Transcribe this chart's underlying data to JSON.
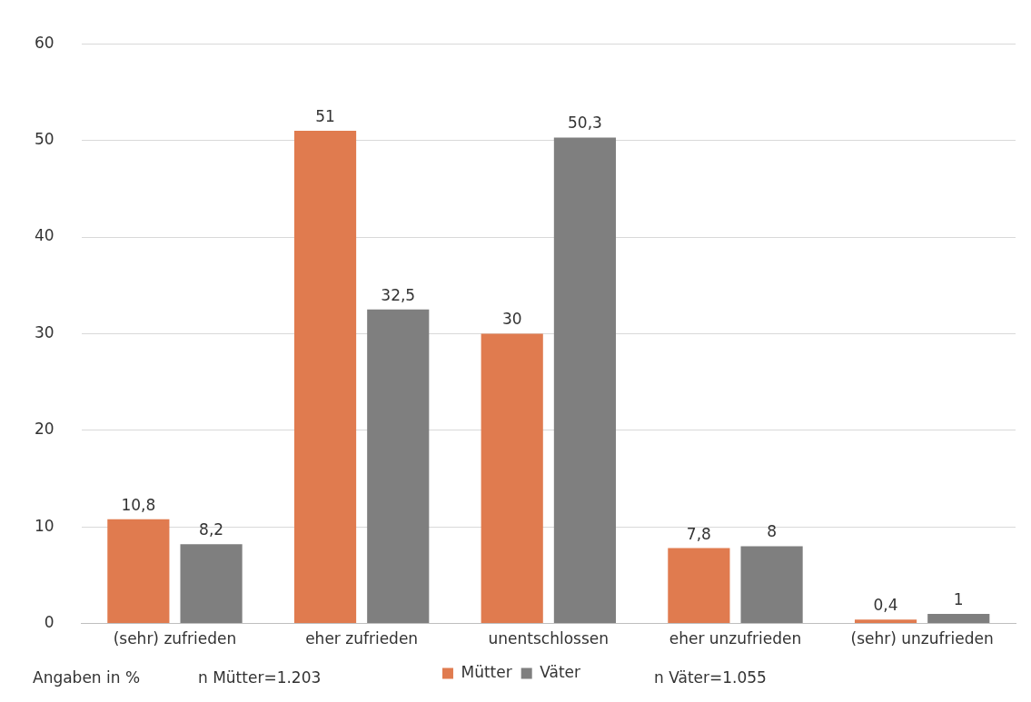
{
  "chart_data": {
    "type": "bar",
    "categories": [
      "(sehr) zufrieden",
      "eher zufrieden",
      "unentschlossen",
      "eher unzufrieden",
      "(sehr) unzufrieden"
    ],
    "series": [
      {
        "name": "Mütter",
        "color": "#e07b4f",
        "values": [
          10.8,
          51,
          30,
          7.8,
          0.4
        ],
        "value_labels": [
          "10,8",
          "51",
          "30",
          "7,8",
          "0,4"
        ]
      },
      {
        "name": "Väter",
        "color": "#7f7f7f",
        "values": [
          8.2,
          32.5,
          50.3,
          8,
          1
        ],
        "value_labels": [
          "8,2",
          "32,5",
          "50,3",
          "8",
          "1"
        ]
      }
    ],
    "ylim": [
      0,
      60
    ],
    "yticks": [
      0,
      10,
      20,
      30,
      40,
      50,
      60
    ],
    "grid": "y",
    "legend": "bottom",
    "annotations": [
      "Angaben in %",
      "n Mütter=1.203",
      "n Väter=1.055"
    ]
  }
}
